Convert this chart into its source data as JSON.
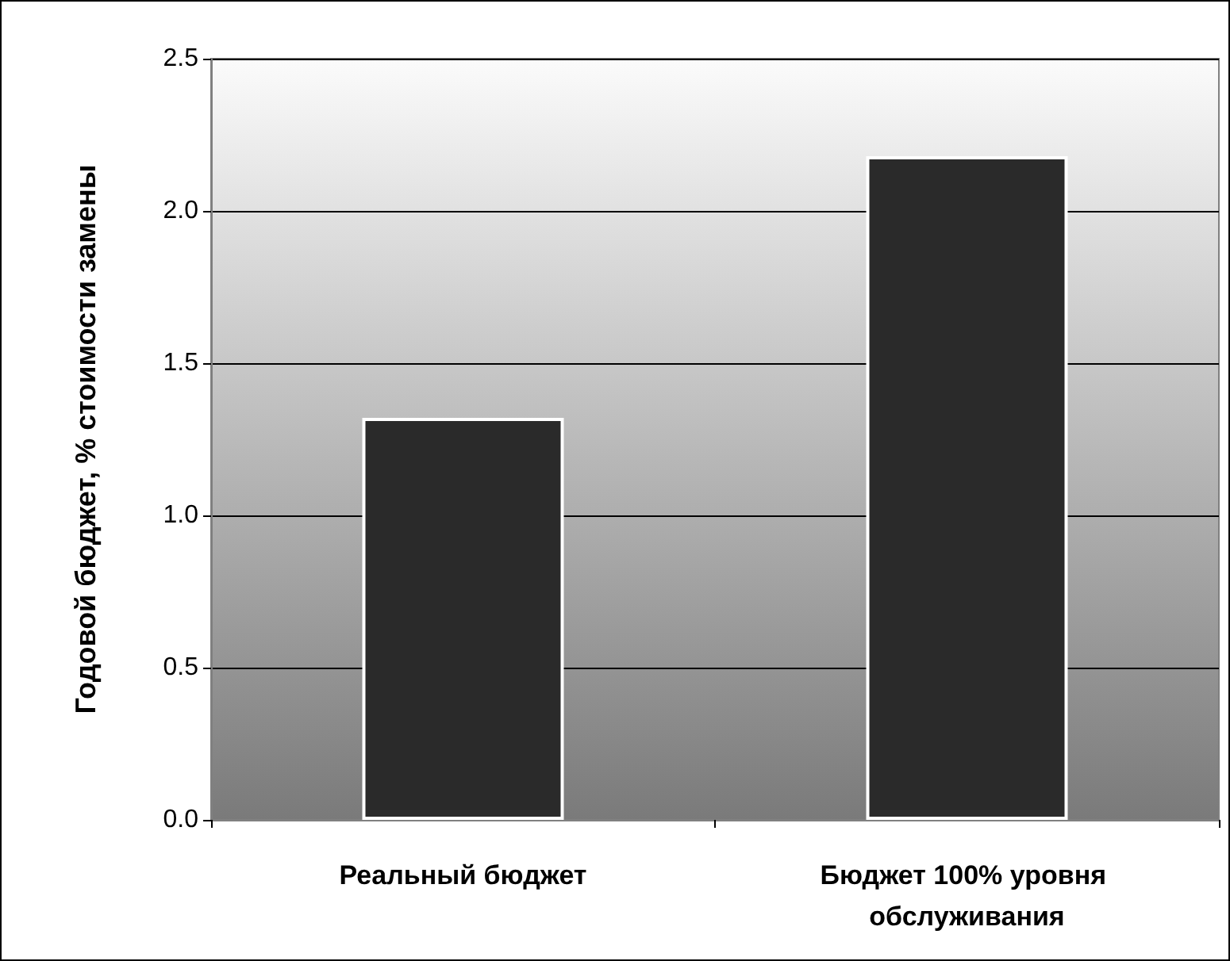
{
  "chart_data": {
    "type": "bar",
    "ylabel": "Годовой бюджет, % стоимости замены",
    "categories": [
      "Реальный бюджет",
      "Бюджет 100% уровня обслуживания"
    ],
    "values": [
      1.32,
      2.18
    ],
    "color": "#2a2a2a",
    "ylim": [
      0,
      2.5
    ],
    "yticks": [
      {
        "value": 0,
        "label": "0.0"
      },
      0.5,
      {
        "value": 1,
        "label": "1.0"
      },
      1.5,
      {
        "value": 2,
        "label": "2.0"
      },
      2.5
    ],
    "grid": "y"
  }
}
